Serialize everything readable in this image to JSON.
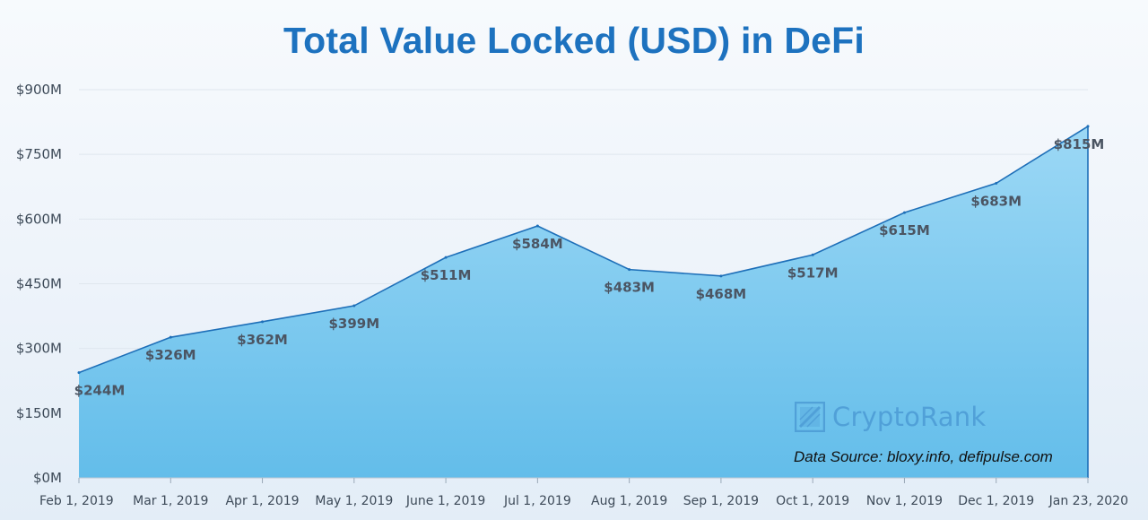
{
  "chart_data": {
    "type": "area",
    "title": "Total Value Locked (USD) in DeFi",
    "xlabel": "",
    "ylabel": "",
    "categories": [
      "Feb 1, 2019",
      "Mar 1, 2019",
      "Apr 1, 2019",
      "May 1, 2019",
      "June 1, 2019",
      "Jul 1, 2019",
      "Aug 1, 2019",
      "Sep 1, 2019",
      "Oct 1, 2019",
      "Nov 1, 2019",
      "Dec 1, 2019",
      "Jan 23, 2020"
    ],
    "values": [
      244,
      326,
      362,
      399,
      511,
      584,
      483,
      468,
      517,
      615,
      683,
      815
    ],
    "data_labels": [
      "$244M",
      "$326M",
      "$362M",
      "$399M",
      "$511M",
      "$584M",
      "$483M",
      "$468M",
      "$517M",
      "$615M",
      "$683M",
      "$815M"
    ],
    "ylim": [
      0,
      900
    ],
    "y_ticks": [
      0,
      150,
      300,
      450,
      600,
      750,
      900
    ],
    "y_tick_labels": [
      "$0M",
      "$150M",
      "$300M",
      "$450M",
      "$600M",
      "$750M",
      "$900M"
    ],
    "grid": true,
    "legend": "none",
    "colors": {
      "area_fill": "#7ccaf0",
      "line": "#1e6fb8",
      "title": "#1d72bf"
    }
  },
  "watermark": {
    "text": "CryptoRank",
    "icon": "cryptorank-logo-icon"
  },
  "source_note": "Data Source: bloxy.info, defipulse.com"
}
